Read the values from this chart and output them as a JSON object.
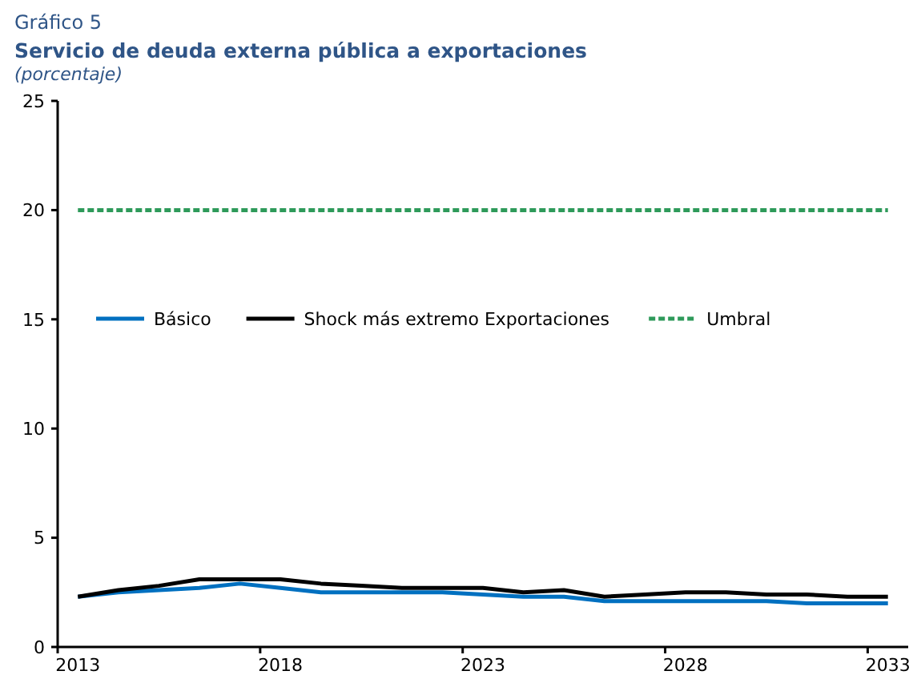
{
  "chart_data": {
    "type": "line",
    "title": "Servicio de deuda externa pública a exportaciones",
    "ylabel": "(porcentaje)",
    "annotations": [
      "Gráfico 5"
    ],
    "categories": [
      "2013",
      null,
      null,
      null,
      null,
      "2018",
      null,
      null,
      null,
      null,
      "2023",
      null,
      null,
      null,
      null,
      "2028",
      null,
      null,
      null,
      null,
      "2033"
    ],
    "ylim": [
      0,
      25
    ],
    "yticks": [
      0,
      5,
      10,
      15,
      20,
      25
    ],
    "grid": false,
    "legend": "left",
    "marker": "none",
    "series": [
      {
        "name": "Básico",
        "color": "#0070c0",
        "line_style": "solid",
        "values": [
          2.3,
          2.5,
          2.6,
          2.7,
          2.9,
          2.7,
          2.5,
          2.5,
          2.5,
          2.5,
          2.4,
          2.3,
          2.3,
          2.1,
          2.1,
          2.1,
          2.1,
          2.1,
          2.0,
          2.0,
          2.0
        ]
      },
      {
        "name": "Shock más extremo Exportaciones",
        "color": "#000000",
        "line_style": "solid",
        "values": [
          2.3,
          2.6,
          2.8,
          3.1,
          3.1,
          3.1,
          2.9,
          2.8,
          2.7,
          2.7,
          2.7,
          2.5,
          2.6,
          2.3,
          2.4,
          2.5,
          2.5,
          2.4,
          2.4,
          2.3,
          2.3
        ]
      },
      {
        "name": "Umbral",
        "color": "#2e9a5a",
        "line_style": "dashed",
        "values": [
          20,
          20,
          20,
          20,
          20,
          20,
          20,
          20,
          20,
          20,
          20,
          20,
          20,
          20,
          20,
          20,
          20,
          20,
          20,
          20,
          20
        ]
      }
    ]
  }
}
